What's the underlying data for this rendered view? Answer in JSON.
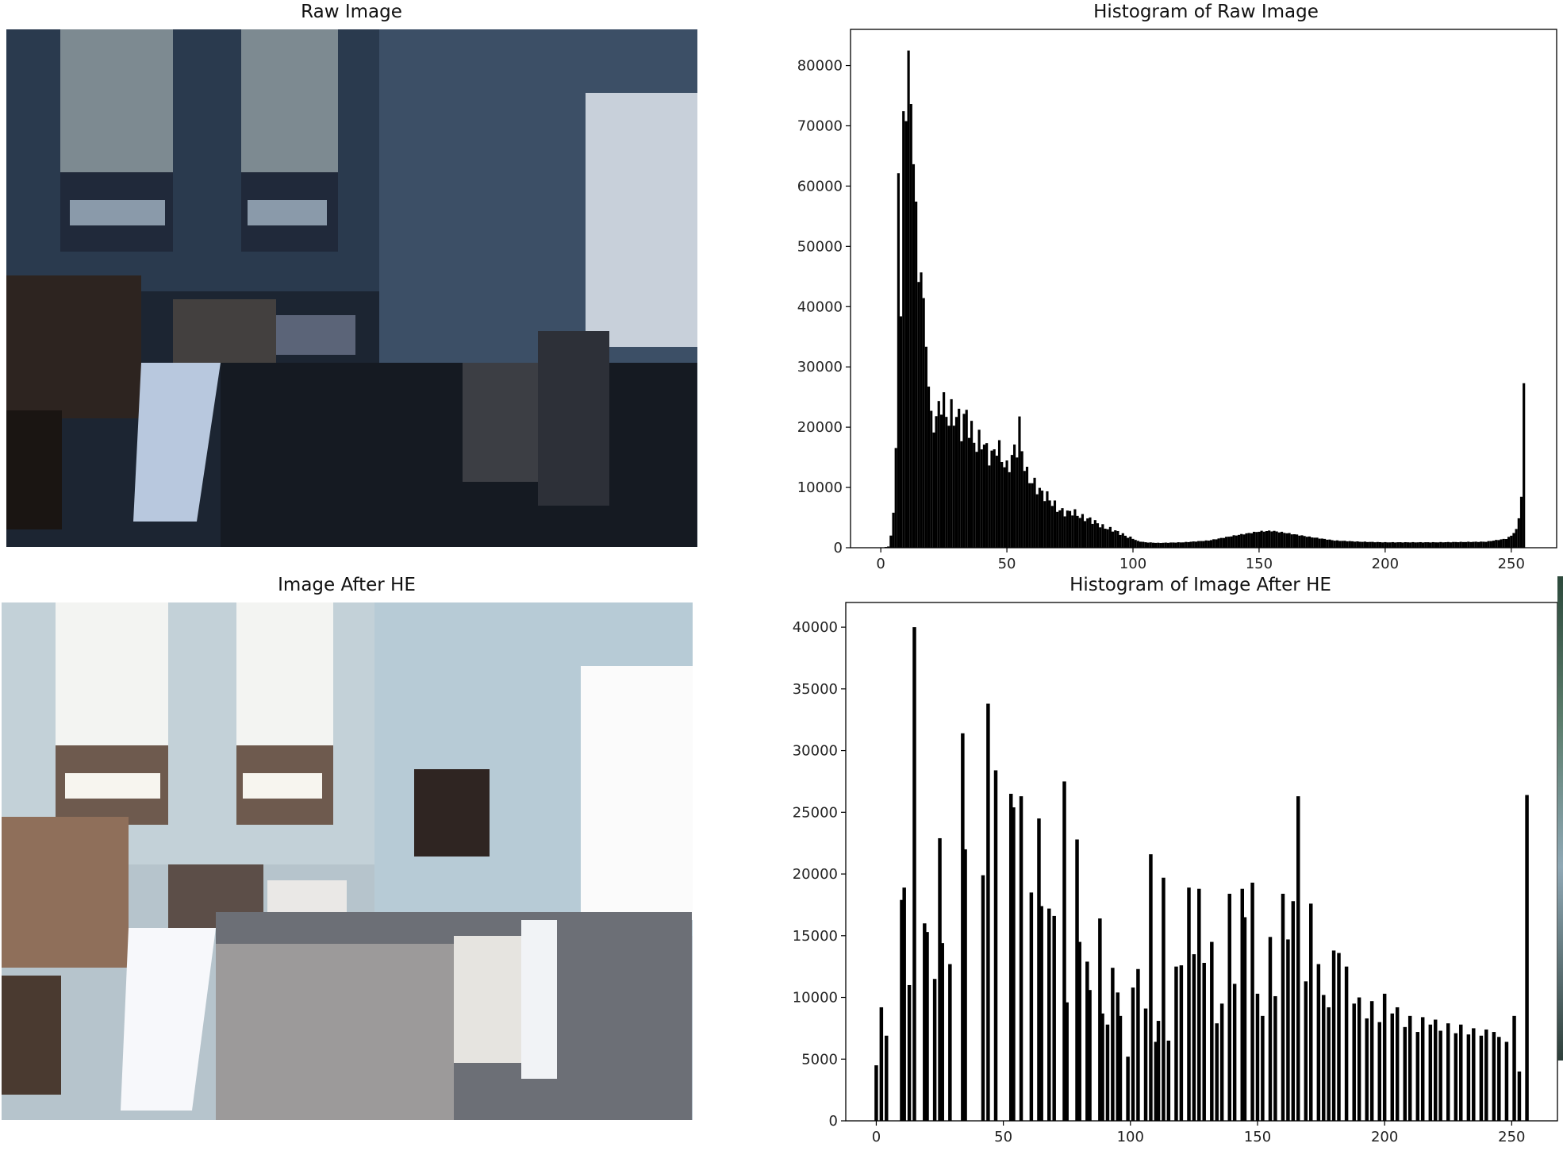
{
  "figure": {
    "raw_title": "Raw Image",
    "he_title": "Image After HE",
    "raw_hist_title": "Histogram of Raw Image",
    "he_hist_title": "Histogram of Image After HE"
  },
  "colors": {
    "bar": "#000000",
    "axis": "#000000"
  },
  "chart_data": [
    {
      "type": "bar",
      "title": "Histogram of Raw Image",
      "xlabel": "",
      "ylabel": "",
      "xlim": [
        -12,
        268
      ],
      "ylim": [
        0,
        86000
      ],
      "xticks": [
        0,
        50,
        100,
        150,
        200,
        250
      ],
      "yticks": [
        0,
        10000,
        20000,
        30000,
        40000,
        50000,
        60000,
        70000,
        80000
      ],
      "key_points": [
        [
          0,
          0
        ],
        [
          3,
          200
        ],
        [
          4,
          2000
        ],
        [
          5,
          6000
        ],
        [
          6,
          16000
        ],
        [
          7,
          63000
        ],
        [
          8,
          39000
        ],
        [
          9,
          70000
        ],
        [
          10,
          73000
        ],
        [
          11,
          82000
        ],
        [
          12,
          72000
        ],
        [
          13,
          66000
        ],
        [
          14,
          56000
        ],
        [
          15,
          44000
        ],
        [
          16,
          47000
        ],
        [
          17,
          40000
        ],
        [
          18,
          34000
        ],
        [
          19,
          27000
        ],
        [
          20,
          22000
        ],
        [
          22,
          21000
        ],
        [
          24,
          25000
        ],
        [
          26,
          22000
        ],
        [
          28,
          22000
        ],
        [
          30,
          22000
        ],
        [
          32,
          20000
        ],
        [
          34,
          22000
        ],
        [
          36,
          19000
        ],
        [
          38,
          17000
        ],
        [
          40,
          18000
        ],
        [
          42,
          16000
        ],
        [
          44,
          15000
        ],
        [
          46,
          17000
        ],
        [
          48,
          15000
        ],
        [
          50,
          13000
        ],
        [
          52,
          15000
        ],
        [
          54,
          17000
        ],
        [
          55,
          20000
        ],
        [
          56,
          16000
        ],
        [
          58,
          12000
        ],
        [
          60,
          11000
        ],
        [
          62,
          10000
        ],
        [
          64,
          9000
        ],
        [
          66,
          8500
        ],
        [
          68,
          7500
        ],
        [
          70,
          6500
        ],
        [
          72,
          6000
        ],
        [
          74,
          5800
        ],
        [
          76,
          6000
        ],
        [
          78,
          5500
        ],
        [
          80,
          5000
        ],
        [
          82,
          4800
        ],
        [
          84,
          4500
        ],
        [
          86,
          4000
        ],
        [
          88,
          3500
        ],
        [
          90,
          3200
        ],
        [
          92,
          3000
        ],
        [
          94,
          2600
        ],
        [
          96,
          2200
        ],
        [
          98,
          1800
        ],
        [
          100,
          1500
        ],
        [
          102,
          1100
        ],
        [
          105,
          900
        ],
        [
          110,
          800
        ],
        [
          120,
          900
        ],
        [
          130,
          1200
        ],
        [
          140,
          2000
        ],
        [
          150,
          2700
        ],
        [
          155,
          2800
        ],
        [
          160,
          2500
        ],
        [
          170,
          1800
        ],
        [
          180,
          1200
        ],
        [
          190,
          1000
        ],
        [
          200,
          900
        ],
        [
          220,
          900
        ],
        [
          240,
          1000
        ],
        [
          248,
          1500
        ],
        [
          250,
          2000
        ],
        [
          252,
          3000
        ],
        [
          253,
          5000
        ],
        [
          254,
          8500
        ],
        [
          255,
          26500
        ]
      ]
    },
    {
      "type": "bar",
      "title": "Histogram of Image After HE",
      "xlabel": "",
      "ylabel": "",
      "xlim": [
        -12,
        268
      ],
      "ylim": [
        0,
        42000
      ],
      "xticks": [
        0,
        50,
        100,
        150,
        200,
        250
      ],
      "yticks": [
        0,
        5000,
        10000,
        15000,
        20000,
        25000,
        30000,
        35000,
        40000
      ],
      "bars": [
        [
          0,
          4500
        ],
        [
          2,
          9200
        ],
        [
          4,
          6900
        ],
        [
          10,
          17900
        ],
        [
          11,
          18900
        ],
        [
          13,
          11000
        ],
        [
          15,
          40000
        ],
        [
          19,
          16000
        ],
        [
          20,
          15300
        ],
        [
          23,
          11500
        ],
        [
          25,
          22900
        ],
        [
          26,
          14400
        ],
        [
          29,
          12700
        ],
        [
          34,
          31400
        ],
        [
          35,
          22000
        ],
        [
          42,
          19900
        ],
        [
          44,
          33800
        ],
        [
          47,
          28400
        ],
        [
          53,
          26500
        ],
        [
          54,
          25400
        ],
        [
          57,
          26300
        ],
        [
          61,
          18500
        ],
        [
          64,
          24500
        ],
        [
          65,
          17400
        ],
        [
          68,
          17200
        ],
        [
          70,
          16600
        ],
        [
          74,
          27500
        ],
        [
          75,
          9600
        ],
        [
          79,
          22800
        ],
        [
          80,
          14500
        ],
        [
          83,
          12900
        ],
        [
          84,
          10600
        ],
        [
          88,
          16400
        ],
        [
          89,
          8700
        ],
        [
          91,
          7800
        ],
        [
          93,
          12400
        ],
        [
          95,
          10400
        ],
        [
          96,
          8500
        ],
        [
          99,
          5200
        ],
        [
          101,
          10800
        ],
        [
          103,
          12300
        ],
        [
          106,
          9100
        ],
        [
          108,
          21600
        ],
        [
          110,
          6400
        ],
        [
          111,
          8100
        ],
        [
          113,
          19700
        ],
        [
          115,
          6500
        ],
        [
          118,
          12500
        ],
        [
          120,
          12600
        ],
        [
          123,
          18900
        ],
        [
          125,
          13500
        ],
        [
          127,
          18800
        ],
        [
          129,
          12800
        ],
        [
          132,
          14500
        ],
        [
          134,
          7900
        ],
        [
          136,
          9500
        ],
        [
          139,
          18400
        ],
        [
          141,
          11100
        ],
        [
          144,
          18800
        ],
        [
          145,
          16500
        ],
        [
          148,
          19300
        ],
        [
          150,
          10300
        ],
        [
          152,
          8500
        ],
        [
          155,
          14900
        ],
        [
          157,
          10100
        ],
        [
          160,
          18400
        ],
        [
          162,
          14700
        ],
        [
          164,
          17800
        ],
        [
          166,
          26300
        ],
        [
          169,
          11300
        ],
        [
          171,
          17600
        ],
        [
          174,
          12700
        ],
        [
          176,
          10200
        ],
        [
          178,
          9200
        ],
        [
          180,
          13800
        ],
        [
          182,
          13600
        ],
        [
          185,
          12500
        ],
        [
          188,
          9500
        ],
        [
          190,
          10000
        ],
        [
          193,
          8300
        ],
        [
          195,
          9700
        ],
        [
          198,
          8000
        ],
        [
          200,
          10300
        ],
        [
          203,
          8700
        ],
        [
          205,
          9200
        ],
        [
          208,
          7600
        ],
        [
          210,
          8500
        ],
        [
          213,
          7200
        ],
        [
          215,
          8400
        ],
        [
          218,
          7800
        ],
        [
          220,
          8200
        ],
        [
          222,
          7300
        ],
        [
          225,
          7900
        ],
        [
          228,
          7100
        ],
        [
          230,
          7800
        ],
        [
          233,
          7000
        ],
        [
          235,
          7500
        ],
        [
          238,
          6900
        ],
        [
          240,
          7400
        ],
        [
          243,
          7200
        ],
        [
          245,
          6800
        ],
        [
          248,
          6400
        ],
        [
          251,
          8500
        ],
        [
          253,
          4000
        ],
        [
          256,
          26400
        ]
      ]
    }
  ]
}
